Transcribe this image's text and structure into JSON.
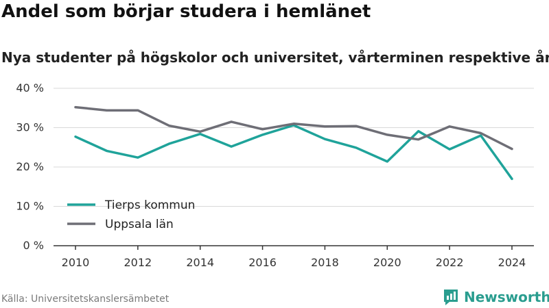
{
  "header": {
    "title": "Andel som börjar studera i hemlänet",
    "subtitle": "Nya studenter på högskolor och universitet, vårterminen respektive år"
  },
  "footer": {
    "source": "Källa: Universitetskanslersämbetet",
    "brand": "Newsworthy"
  },
  "colors": {
    "teal": "#1fa39a",
    "gray": "#6e6e76",
    "grid": "#d9d9d9",
    "axis": "#333333",
    "tick_text": "#333333",
    "brand": "#2a9d8f"
  },
  "chart_data": {
    "type": "line",
    "x": [
      2010,
      2011,
      2012,
      2013,
      2014,
      2015,
      2016,
      2017,
      2018,
      2019,
      2020,
      2021,
      2022,
      2023,
      2024
    ],
    "series": [
      {
        "name": "Tierps kommun",
        "color": "#1fa39a",
        "values": [
          27.7,
          24.1,
          22.4,
          25.9,
          28.4,
          25.2,
          28.2,
          30.6,
          27.1,
          24.9,
          21.4,
          29.1,
          24.5,
          28.0,
          17.0
        ]
      },
      {
        "name": "Uppsala län",
        "color": "#6e6e76",
        "values": [
          35.2,
          34.4,
          34.4,
          30.5,
          29.0,
          31.5,
          29.6,
          31.0,
          30.3,
          30.4,
          28.2,
          27.0,
          30.3,
          28.6,
          24.6
        ]
      }
    ],
    "xticks": [
      "2010",
      "2012",
      "2014",
      "2016",
      "2018",
      "2020",
      "2022",
      "2024"
    ],
    "yticks": [
      "0 %",
      "10 %",
      "20 %",
      "30 %",
      "40 %"
    ],
    "ylim": [
      0,
      40
    ],
    "xlim": [
      2010,
      2024
    ],
    "grid": true,
    "legend_position": "lower-left"
  }
}
